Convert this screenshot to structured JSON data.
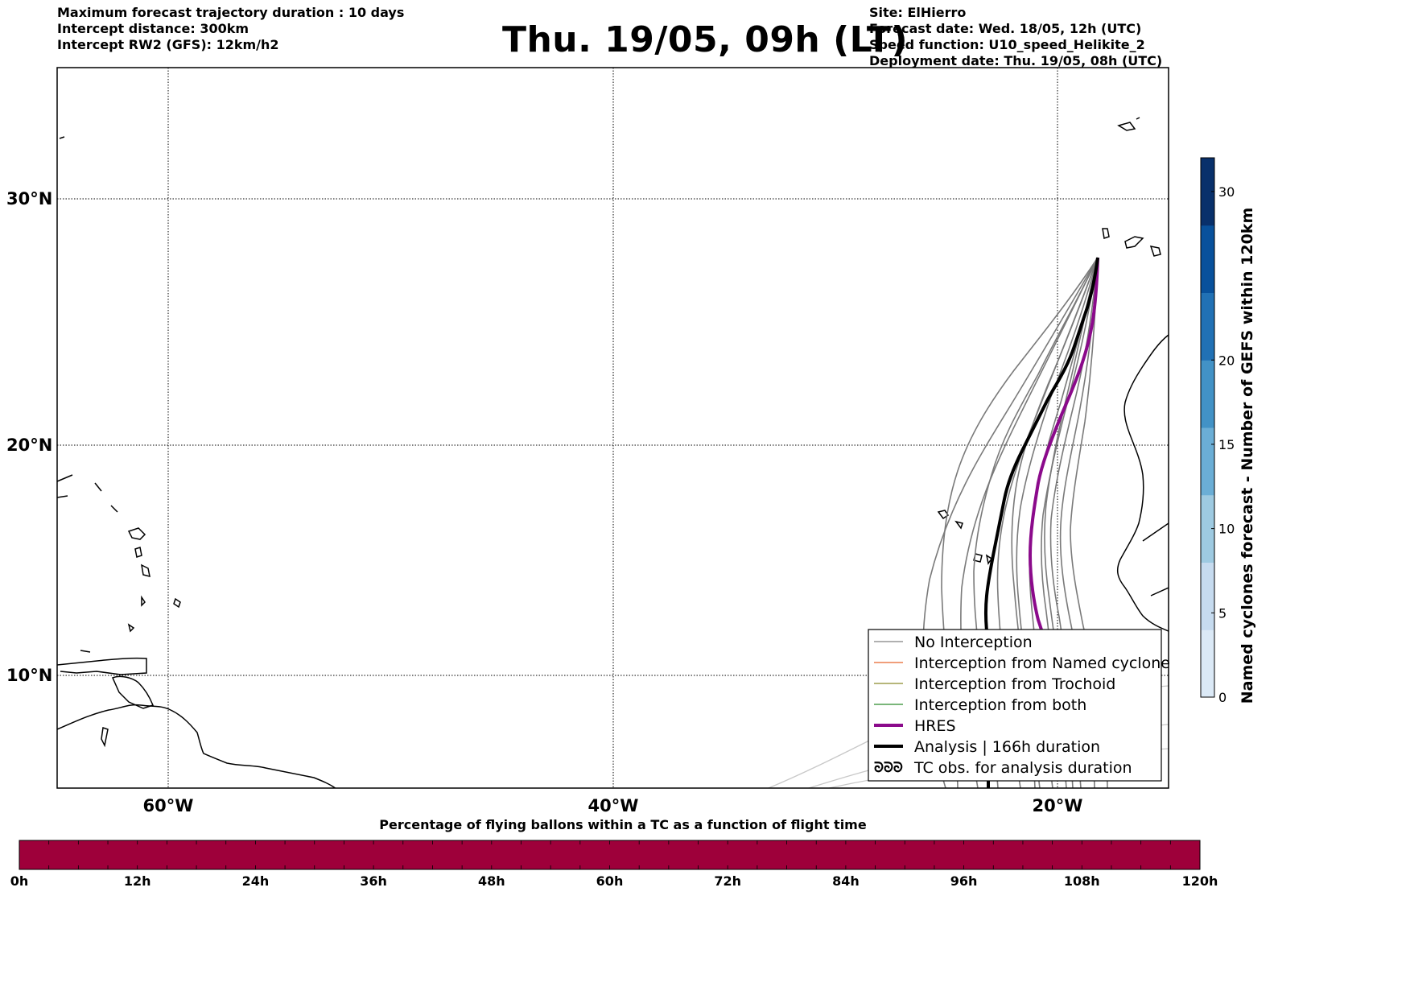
{
  "header": {
    "left_lines": [
      "Maximum forecast trajectory duration : 10 days",
      "Intercept distance: 300km",
      "Intercept RW2 (GFS):  12km/h2"
    ],
    "title": "Thu. 19/05, 09h (LT)",
    "right_lines": [
      "Site: ElHierro",
      "Forecast date: Wed. 18/05, 12h (UTC)",
      "Speed function: U10_speed_Helikite_2",
      "Deployment date: Thu. 19/05, 08h (UTC)"
    ]
  },
  "map": {
    "lat_labels": [
      "30°N",
      "20°N",
      "10°N"
    ],
    "lon_labels": [
      "60°W",
      "40°W",
      "20°W"
    ],
    "gridlines": "dotted"
  },
  "legend": {
    "placement": "lower-right",
    "items": [
      {
        "label": "No Interception",
        "color": "#808080",
        "style": "thin"
      },
      {
        "label": "Interception from Named cyclone",
        "color": "#e8632a",
        "style": "thin"
      },
      {
        "label": "Interception from Trochoid",
        "color": "#8a8a2a",
        "style": "thin"
      },
      {
        "label": "Interception from both",
        "color": "#2a8a2a",
        "style": "thin"
      },
      {
        "label": "HRES",
        "color": "#8b0a8b",
        "style": "thick"
      },
      {
        "label": "Analysis | 166h duration",
        "color": "#000000",
        "style": "thick"
      },
      {
        "label": "TC obs. for analysis duration",
        "color": "#000000",
        "style": "symbol"
      }
    ]
  },
  "colorbar": {
    "label": "Named cyclones forecast - Number of GEFS within 120km",
    "ticks": [
      "0",
      "5",
      "10",
      "15",
      "20",
      "30"
    ],
    "colors": [
      "#dbe9f6",
      "#c6dbef",
      "#9ecae1",
      "#6baed6",
      "#4292c6",
      "#2171b5",
      "#08519c",
      "#08306b"
    ]
  },
  "bottom_bar": {
    "title": "Percentage of flying ballons within a TC as a function of flight time",
    "color": "#9e003a",
    "ticks": [
      "0h",
      "12h",
      "24h",
      "36h",
      "48h",
      "60h",
      "72h",
      "84h",
      "96h",
      "108h",
      "120h"
    ]
  }
}
